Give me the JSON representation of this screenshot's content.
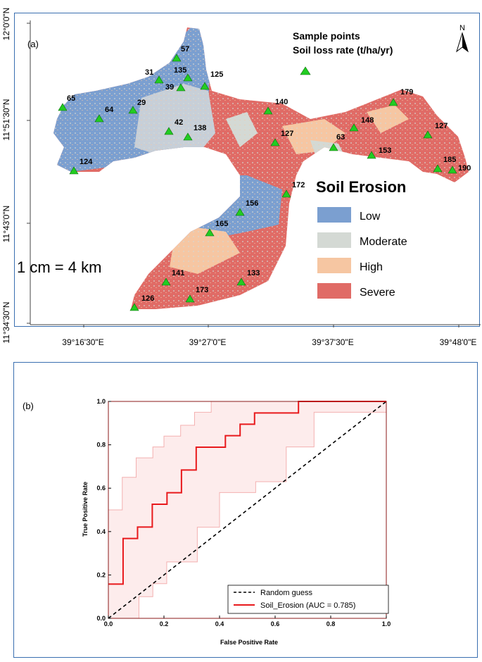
{
  "panel_a": {
    "label": "(a)",
    "north_label": "N",
    "sample_points_title": "Sample points",
    "soil_loss_title": "Soil loss rate (t/ha/yr)",
    "scale_text": "1 cm = 4 km",
    "y_ticks": [
      "12°0'0\"N",
      "11°51'30\"N",
      "11°43'0\"N",
      "11°34'30\"N"
    ],
    "x_ticks": [
      "39°16'30\"E",
      "39°27'0\"E",
      "39°37'30\"E",
      "39°48'0\"E"
    ],
    "legend": {
      "title": "Soil Erosion",
      "items": [
        {
          "label": "Low",
          "color": "#7b9fd0"
        },
        {
          "label": "Moderate",
          "color": "#d4d9d4"
        },
        {
          "label": "High",
          "color": "#f6c6a2"
        },
        {
          "label": "Severe",
          "color": "#e06b66"
        }
      ]
    },
    "marker_color": "#22cc22",
    "sample_points": [
      {
        "label": "57"
      },
      {
        "label": "31"
      },
      {
        "label": "135"
      },
      {
        "label": "125"
      },
      {
        "label": "39"
      },
      {
        "label": "65"
      },
      {
        "label": "29"
      },
      {
        "label": "64"
      },
      {
        "label": "42"
      },
      {
        "label": "138"
      },
      {
        "label": "140"
      },
      {
        "label": "127"
      },
      {
        "label": "63"
      },
      {
        "label": "148"
      },
      {
        "label": "179"
      },
      {
        "label": "153"
      },
      {
        "label": "127"
      },
      {
        "label": "185"
      },
      {
        "label": "190"
      },
      {
        "label": "124"
      },
      {
        "label": "172"
      },
      {
        "label": "156"
      },
      {
        "label": "165"
      },
      {
        "label": "141"
      },
      {
        "label": "133"
      },
      {
        "label": "126"
      },
      {
        "label": "173"
      }
    ]
  },
  "panel_b": {
    "label": "(b)"
  },
  "chart_data": {
    "type": "line",
    "xlabel": "False Positive Rate",
    "ylabel": "True Positive Rate",
    "xlim": [
      0,
      1
    ],
    "ylim": [
      0,
      1
    ],
    "xticks": [
      "0.0",
      "0.2",
      "0.4",
      "0.6",
      "0.8",
      "1.0"
    ],
    "yticks": [
      "0.0",
      "0.2",
      "0.4",
      "0.6",
      "0.8",
      "1.0"
    ],
    "legend_position": "lower-right",
    "series": [
      {
        "name": "Random guess",
        "color": "#000000",
        "style": "dashed",
        "x": [
          0,
          1
        ],
        "y": [
          0,
          1
        ]
      },
      {
        "name": "Soil_Erosion (AUC = 0.785)",
        "color": "#e8191c",
        "style": "solid",
        "x": [
          0,
          0.053,
          0.053,
          0.105,
          0.105,
          0.158,
          0.158,
          0.211,
          0.211,
          0.263,
          0.263,
          0.316,
          0.316,
          0.421,
          0.421,
          0.474,
          0.474,
          0.526,
          0.526,
          0.684,
          0.684,
          1.0
        ],
        "y": [
          0.158,
          0.158,
          0.368,
          0.368,
          0.421,
          0.421,
          0.526,
          0.526,
          0.579,
          0.579,
          0.684,
          0.684,
          0.789,
          0.789,
          0.842,
          0.842,
          0.895,
          0.895,
          0.947,
          0.947,
          1.0,
          1.0
        ]
      }
    ],
    "confidence_band": {
      "color": "#f3b0b0",
      "upper": {
        "x": [
          0,
          0.05,
          0.05,
          0.1,
          0.1,
          0.16,
          0.16,
          0.2,
          0.2,
          0.26,
          0.26,
          0.31,
          0.31,
          0.37,
          0.37,
          1.0
        ],
        "y": [
          0.5,
          0.5,
          0.65,
          0.65,
          0.74,
          0.74,
          0.79,
          0.79,
          0.84,
          0.84,
          0.89,
          0.89,
          0.95,
          0.95,
          1.0,
          1.0
        ]
      },
      "lower": {
        "x": [
          0,
          0.11,
          0.11,
          0.16,
          0.16,
          0.21,
          0.21,
          0.32,
          0.32,
          0.4,
          0.4,
          0.53,
          0.53,
          0.64,
          0.64,
          0.74,
          0.74,
          1.0
        ],
        "y": [
          0,
          0,
          0.1,
          0.1,
          0.16,
          0.16,
          0.26,
          0.26,
          0.42,
          0.42,
          0.58,
          0.58,
          0.63,
          0.63,
          0.79,
          0.79,
          0.95,
          0.95
        ]
      }
    }
  }
}
